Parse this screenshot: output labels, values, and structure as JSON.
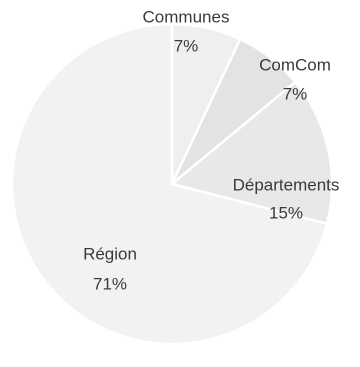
{
  "chart_data": {
    "type": "pie",
    "start_angle_deg": 0,
    "direction": "clockwise",
    "slices": [
      {
        "label": "Communes",
        "percent_label": "7%",
        "value": 7,
        "color": "#efefef"
      },
      {
        "label": "ComCom",
        "percent_label": "7%",
        "value": 7,
        "color": "#e3e3e3"
      },
      {
        "label": "Départements",
        "percent_label": "15%",
        "value": 15,
        "color": "#e8e8e8"
      },
      {
        "label": "Région",
        "percent_label": "71%",
        "value": 71,
        "color": "#f2f2f2"
      }
    ]
  }
}
